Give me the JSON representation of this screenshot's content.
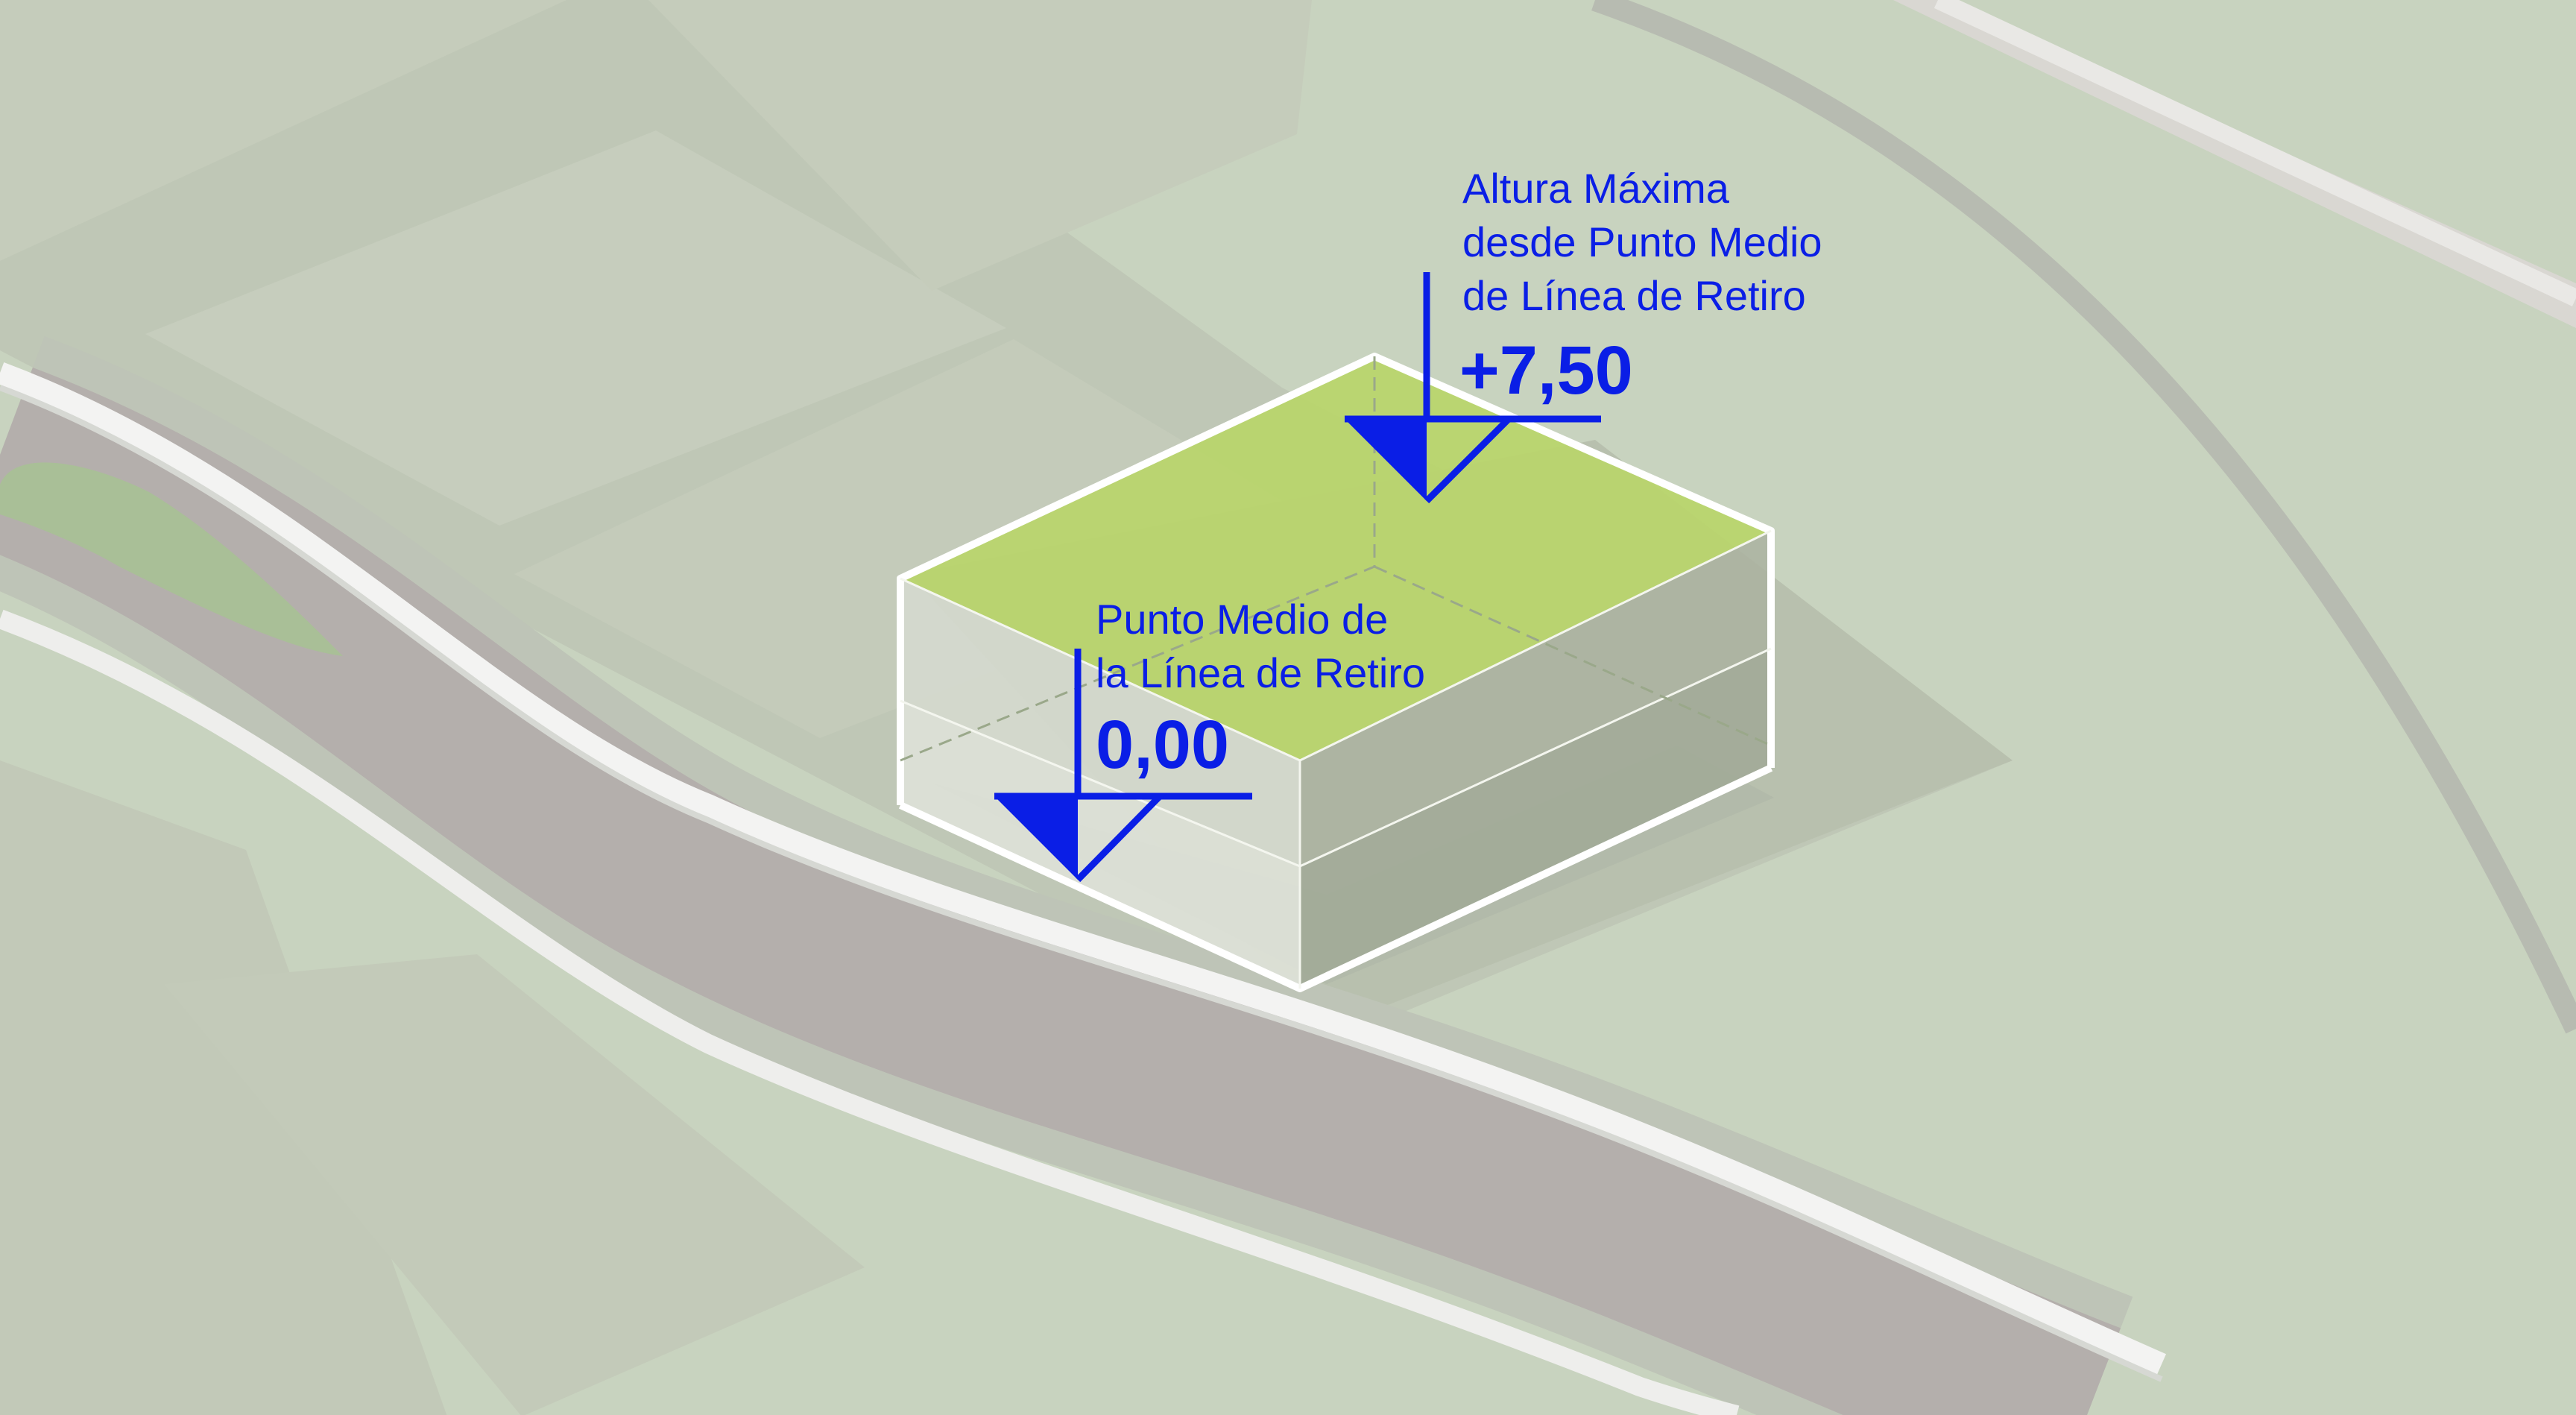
{
  "colors": {
    "annotation": "#0a1ee6",
    "roof": "#b9d56a",
    "ground": "#c9d4c0",
    "lot": "#bcc4b3",
    "road": "#b2adab",
    "sidewalk": "#f1f1f0"
  },
  "annotations": {
    "max_height": {
      "lines": [
        "Altura Máxima",
        "desde Punto Medio",
        "de Línea de Retiro"
      ],
      "value": "+7,50"
    },
    "base_level": {
      "lines": [
        "Punto Medio de",
        "la Línea de Retiro"
      ],
      "value": "0,00"
    }
  }
}
